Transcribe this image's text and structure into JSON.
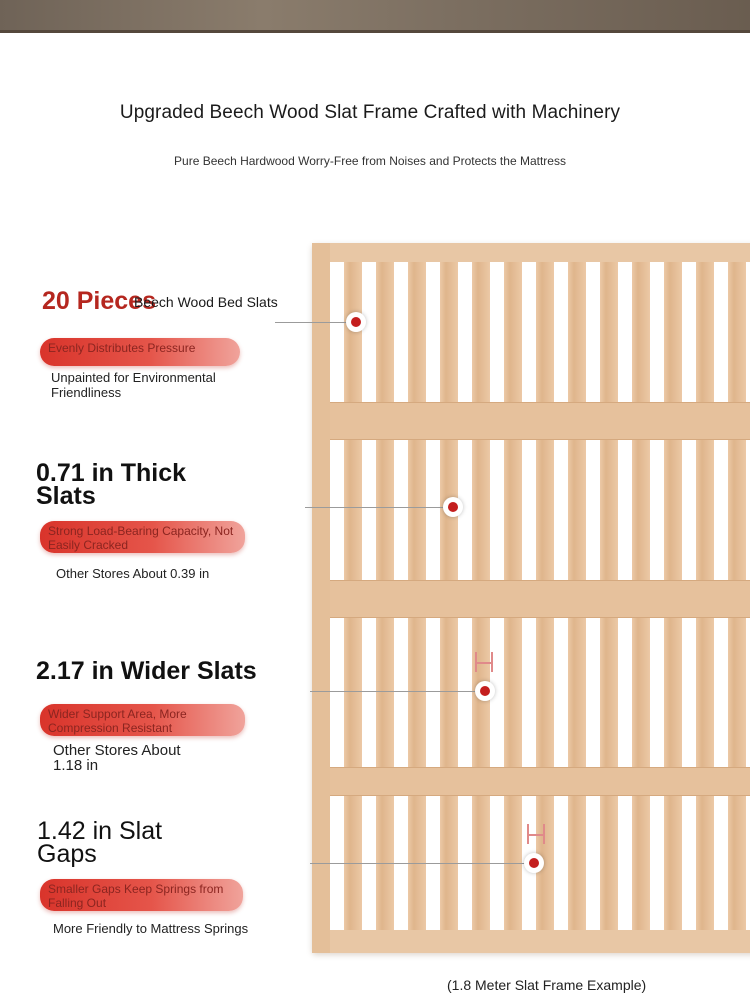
{
  "header": {
    "title": "Upgraded Beech Wood Slat Frame Crafted with Machinery",
    "subtitle": "Pure Beech Hardwood Worry-Free from Noises and Protects the Mattress"
  },
  "features": [
    {
      "headline": "20 Pieces",
      "headline_suffix": "Beech Wood Bed Slats",
      "benefit": "Evenly Distributes Pressure",
      "note": "Unpainted for Environmental Friendliness"
    },
    {
      "headline": "0.71 in Thick Slats",
      "benefit": "Strong Load-Bearing Capacity, Not Easily Cracked",
      "note": "Other Stores About 0.39 in"
    },
    {
      "headline": "2.17 in Wider Slats",
      "benefit": "Wider Support Area, More Compression Resistant",
      "note": "Other Stores About 1.18 in"
    },
    {
      "headline": "1.42 in Slat Gaps",
      "benefit": "Smaller Gaps Keep Springs from Falling Out",
      "note": "More Friendly to Mattress Springs"
    }
  ],
  "caption": "(1.8 Meter Slat Frame Example)",
  "colors": {
    "accent_red": "#c41e1e",
    "pill_gradient_start": "#d9342b",
    "wood": "#e8c7a5"
  }
}
